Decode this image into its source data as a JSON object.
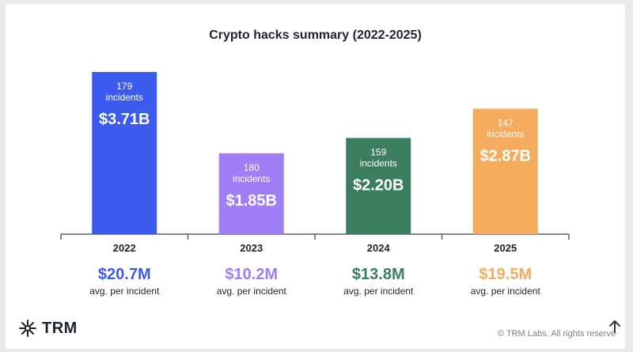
{
  "chart_data": {
    "type": "bar",
    "title": "Crypto hacks summary (2022-2025)",
    "categories": [
      "2022",
      "2023",
      "2024",
      "2025"
    ],
    "values": [
      3.71,
      1.85,
      2.2,
      2.87
    ],
    "value_labels": [
      "$3.71B",
      "$1.85B",
      "$2.20B",
      "$2.87B"
    ],
    "incidents": [
      "179",
      "180",
      "159",
      "147"
    ],
    "incidents_label": "incidents",
    "avg_values": [
      "$20.7M",
      "$10.2M",
      "$13.8M",
      "$19.5M"
    ],
    "avg_caption": "avg. per incident",
    "colors": [
      "#3b5bef",
      "#a07ef5",
      "#3b7d5f",
      "#f4ac5e"
    ],
    "ylim": [
      0,
      3.71
    ],
    "grid": false,
    "legend": "none"
  },
  "footer": {
    "logo_text": "TRM",
    "copyright": "© TRM Labs. All rights reserved"
  }
}
